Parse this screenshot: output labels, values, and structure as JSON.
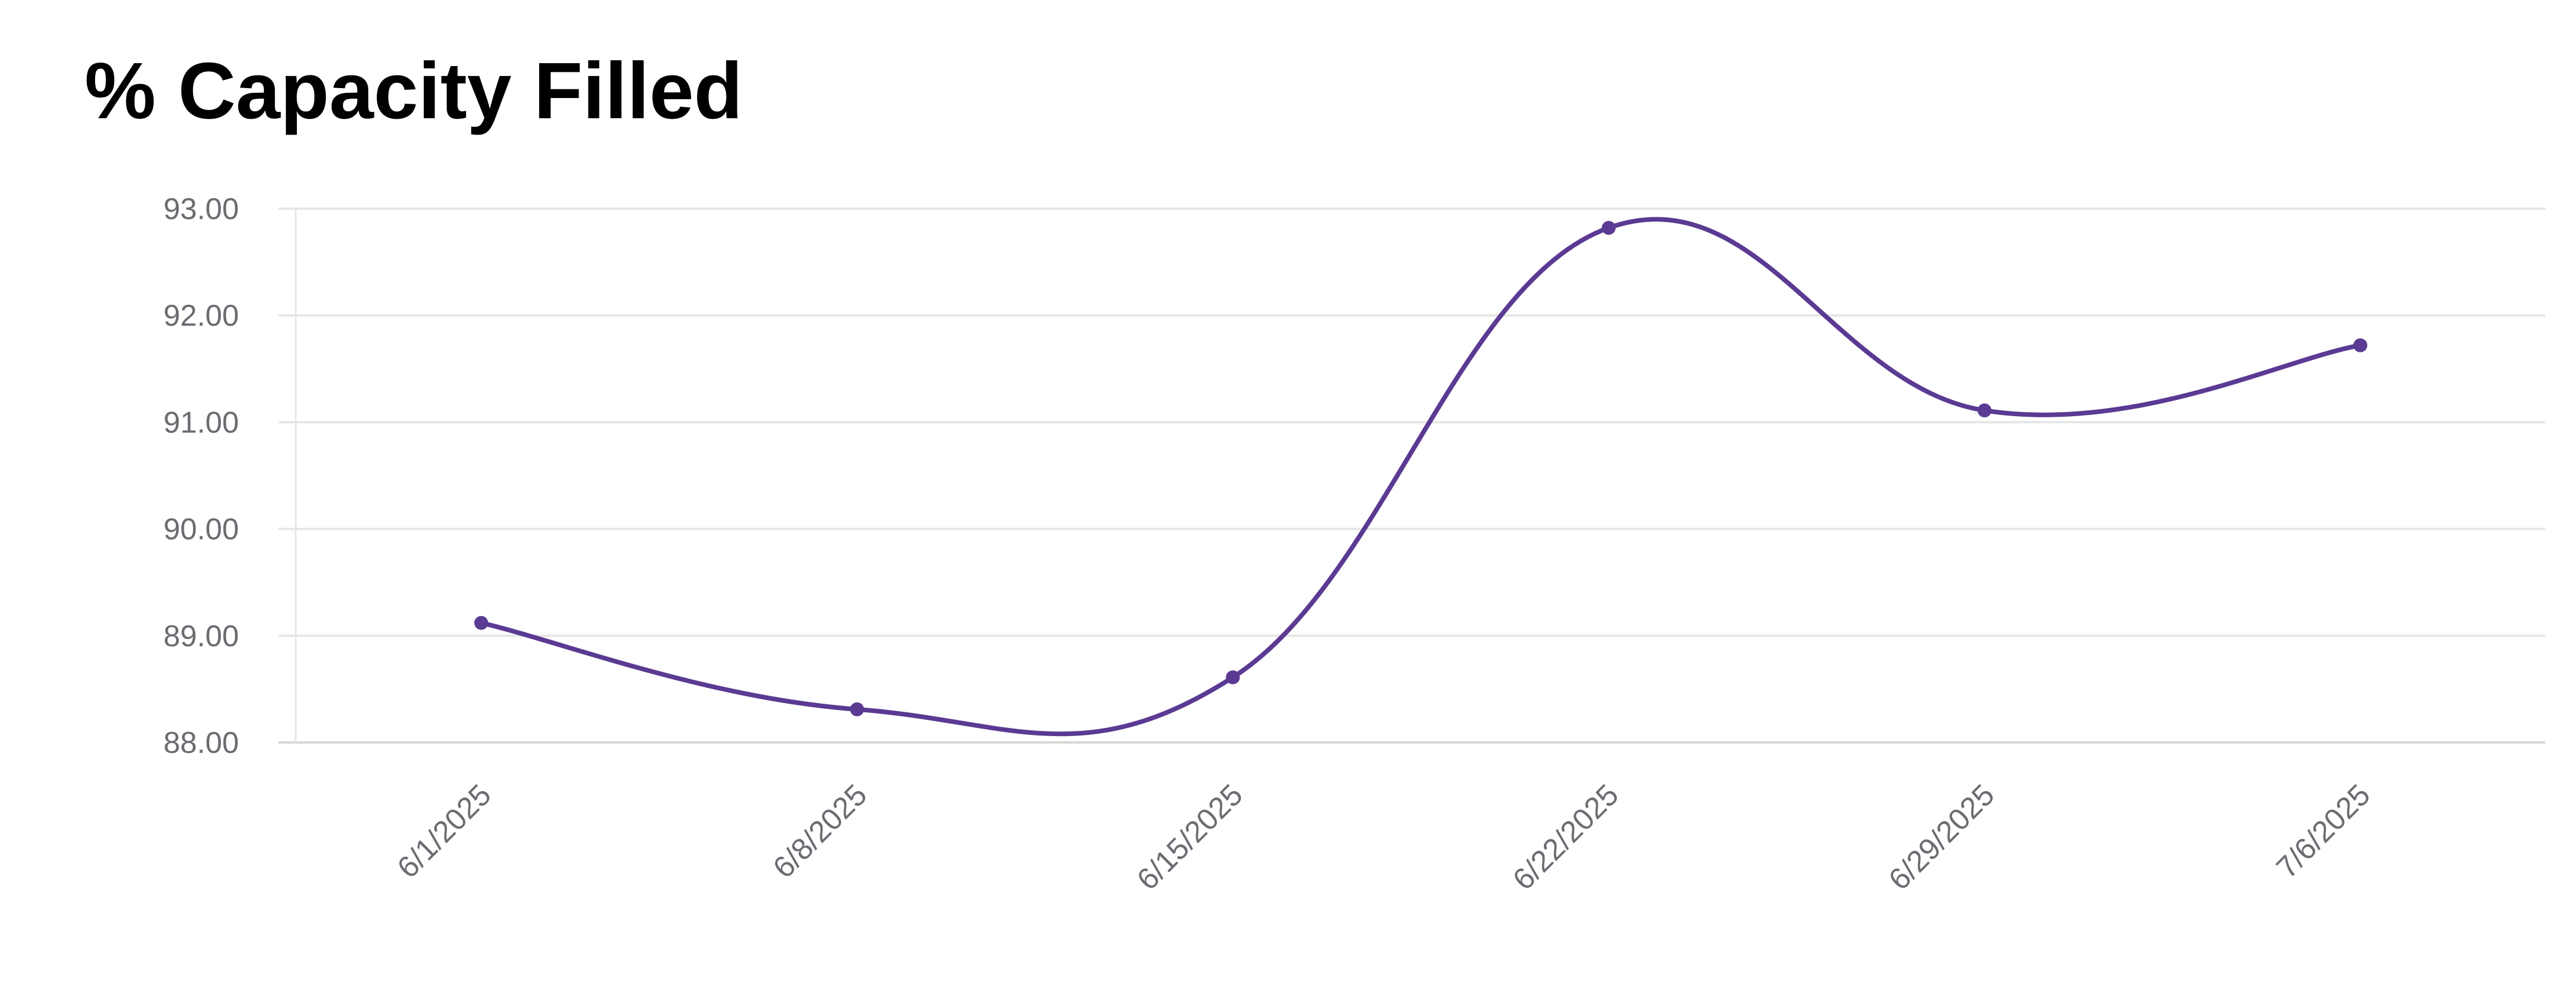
{
  "chart_data": {
    "type": "line",
    "title": "% Capacity Filled",
    "xlabel": "",
    "ylabel": "",
    "categories": [
      "6/1/2025",
      "6/8/2025",
      "6/15/2025",
      "6/22/2025",
      "6/29/2025",
      "7/6/2025"
    ],
    "series": [
      {
        "name": "% Capacity Filled",
        "values": [
          89.12,
          88.31,
          88.61,
          92.82,
          91.11,
          91.72
        ],
        "color": "#5b3a93"
      }
    ],
    "ylim": [
      88,
      93
    ],
    "yticks": [
      "88.00",
      "89.00",
      "90.00",
      "91.00",
      "92.00",
      "93.00"
    ],
    "grid": true,
    "smooth": true
  }
}
